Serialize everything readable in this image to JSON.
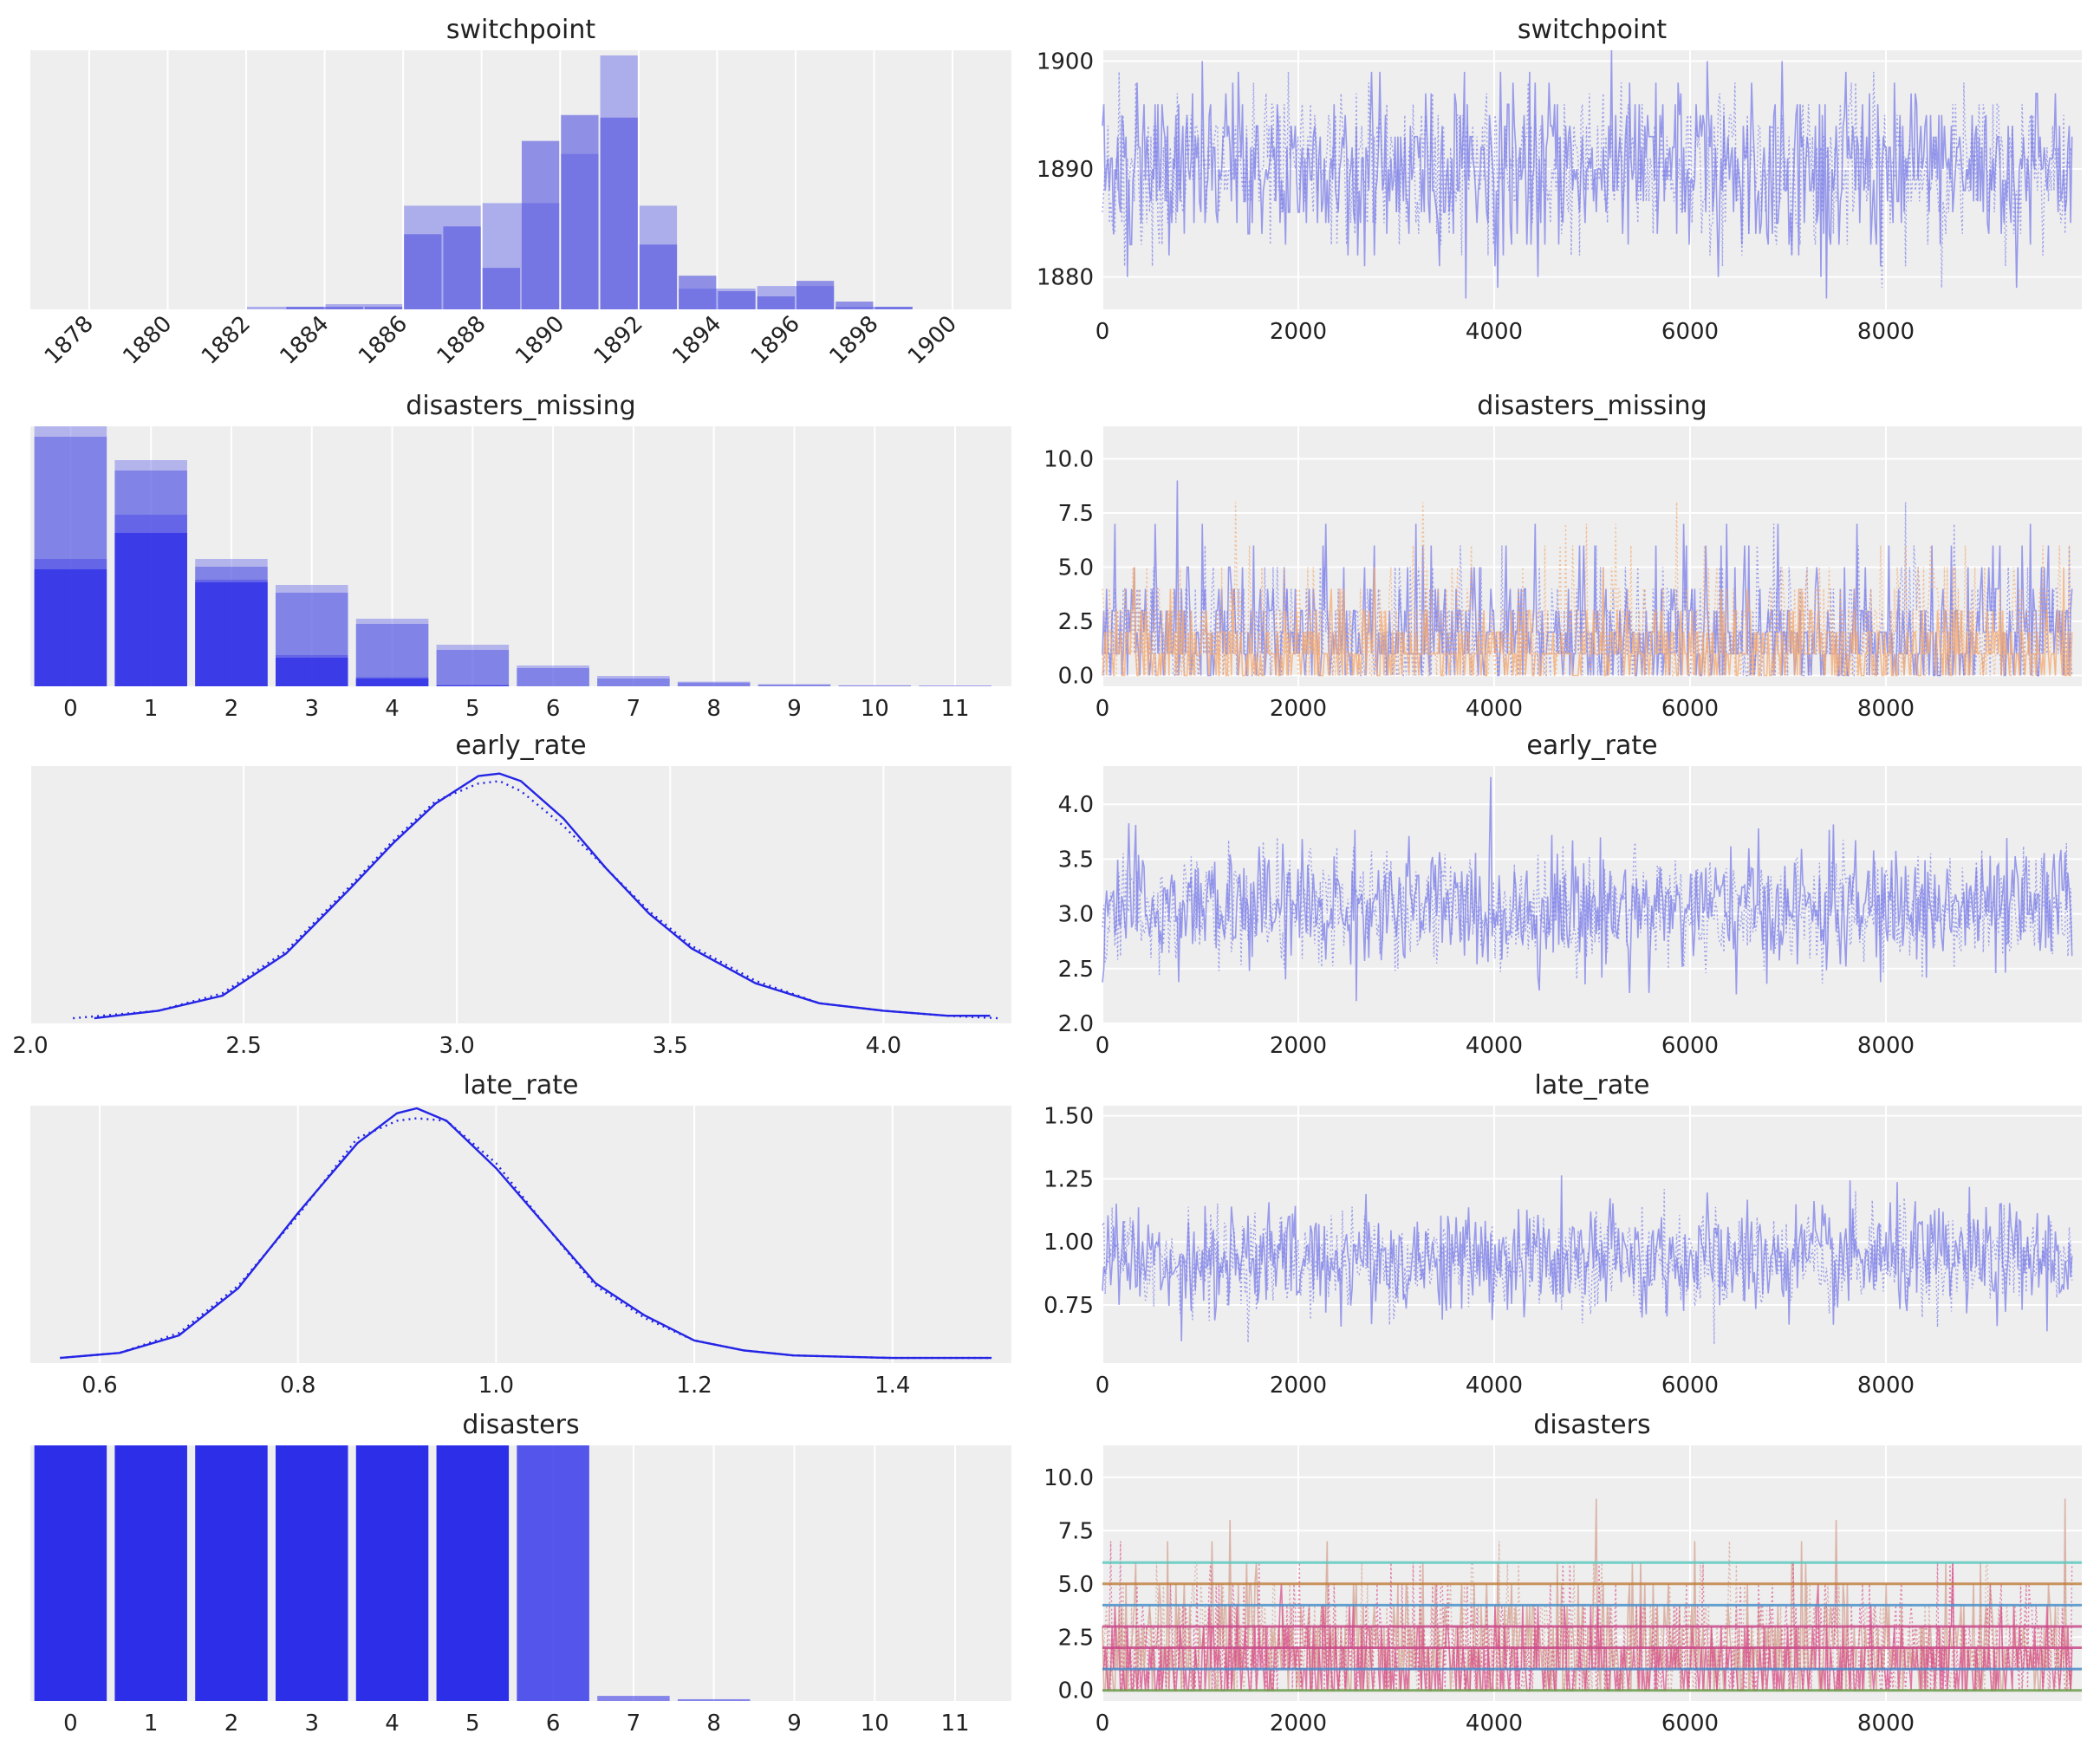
{
  "figure": {
    "rows": [
      "switchpoint",
      "disasters_missing",
      "early_rate",
      "late_rate",
      "disasters"
    ]
  },
  "chart_data": [
    {
      "type": "bar",
      "panel": "left",
      "title": "switchpoint",
      "x_tick_labels": [
        "1878",
        "1880",
        "1882",
        "1884",
        "1886",
        "1888",
        "1890",
        "1892",
        "1894",
        "1896",
        "1898",
        "1900"
      ],
      "x_tick_rotation": -45,
      "xlim": [
        1876.5,
        1901.5
      ],
      "ylim": [
        0,
        1.0
      ],
      "y_ticks_visible": false,
      "series": [
        {
          "style": "light-wide",
          "bins": [
            [
              1882,
              1884,
              0.01
            ],
            [
              1884,
              1886,
              0.02
            ],
            [
              1886,
              1888,
              0.4
            ],
            [
              1888,
              1890,
              0.41
            ],
            [
              1890,
              1891,
              0.6
            ],
            [
              1891,
              1892,
              0.98
            ],
            [
              1892,
              1893,
              0.4
            ],
            [
              1893,
              1895,
              0.08
            ],
            [
              1895,
              1897,
              0.09
            ],
            [
              1897,
              1899,
              0.01
            ]
          ]
        },
        {
          "style": "dark-narrow",
          "bins": [
            [
              1883,
              1885,
              0.01
            ],
            [
              1885,
              1886,
              0.01
            ],
            [
              1886,
              1887,
              0.29
            ],
            [
              1887,
              1888,
              0.32
            ],
            [
              1888,
              1889,
              0.16
            ],
            [
              1889,
              1890,
              0.65
            ],
            [
              1890,
              1891,
              0.75
            ],
            [
              1891,
              1892,
              0.74
            ],
            [
              1892,
              1893,
              0.25
            ],
            [
              1893,
              1894,
              0.13
            ],
            [
              1894,
              1895,
              0.07
            ],
            [
              1895,
              1896,
              0.05
            ],
            [
              1896,
              1897,
              0.11
            ],
            [
              1897,
              1898,
              0.03
            ],
            [
              1898,
              1899,
              0.01
            ]
          ]
        }
      ]
    },
    {
      "type": "line",
      "panel": "right",
      "title": "switchpoint",
      "xlim": [
        0,
        10000
      ],
      "x_ticks": [
        0,
        2000,
        4000,
        6000,
        8000
      ],
      "ylim": [
        1877,
        1901
      ],
      "y_ticks": [
        1880,
        1890,
        1900
      ],
      "trace": {
        "center": 1890,
        "spread": 4,
        "min": 1878,
        "max": 1901,
        "discrete": true,
        "colors": [
          "#7b7de8"
        ]
      }
    },
    {
      "type": "bar",
      "panel": "left",
      "title": "disasters_missing",
      "x_tick_labels": [
        "0",
        "1",
        "2",
        "3",
        "4",
        "5",
        "6",
        "7",
        "8",
        "9",
        "10",
        "11"
      ],
      "xlim": [
        -0.5,
        11.7
      ],
      "ylim": [
        0,
        1.0
      ],
      "y_ticks_visible": false,
      "series": [
        {
          "style": "light",
          "values": [
            1.0,
            0.87,
            0.49,
            0.39,
            0.26,
            0.16,
            0.08,
            0.04,
            0.018,
            0.008,
            0.004,
            0.003
          ]
        },
        {
          "style": "mid",
          "values": [
            0.96,
            0.83,
            0.46,
            0.36,
            0.24,
            0.14,
            0.07,
            0.03,
            0.014,
            0.006,
            0.003,
            0.002
          ]
        },
        {
          "style": "dark",
          "values": [
            0.45,
            0.59,
            0.4,
            0.11,
            0.03,
            0.003,
            0,
            0,
            0,
            0,
            0,
            0
          ]
        },
        {
          "style": "dark-light",
          "values": [
            0.49,
            0.66,
            0.41,
            0.12,
            0.035,
            0.005,
            0,
            0,
            0,
            0,
            0,
            0
          ]
        }
      ]
    },
    {
      "type": "line",
      "panel": "right",
      "title": "disasters_missing",
      "xlim": [
        0,
        10000
      ],
      "x_ticks": [
        0,
        2000,
        4000,
        6000,
        8000
      ],
      "ylim": [
        -0.5,
        11.5
      ],
      "y_ticks": [
        0.0,
        2.5,
        5.0,
        7.5,
        10.0
      ],
      "trace": {
        "center": 2,
        "spread": 2.5,
        "min": 0,
        "max": 11,
        "discrete": true,
        "colors": [
          "#7b7de8",
          "#f4a970"
        ]
      }
    },
    {
      "type": "line",
      "panel": "left",
      "title": "early_rate",
      "xlim": [
        2.0,
        4.3
      ],
      "x_ticks": [
        2.0,
        2.5,
        3.0,
        3.5,
        4.0
      ],
      "ylim": [
        0,
        1.0
      ],
      "y_ticks_visible": false,
      "series": [
        {
          "style": "solid",
          "x": [
            2.15,
            2.3,
            2.45,
            2.6,
            2.75,
            2.85,
            2.95,
            3.05,
            3.1,
            3.15,
            3.25,
            3.35,
            3.45,
            3.55,
            3.7,
            3.85,
            4.0,
            4.15,
            4.25
          ],
          "y": [
            0.0,
            0.03,
            0.09,
            0.26,
            0.52,
            0.7,
            0.86,
            0.97,
            0.98,
            0.95,
            0.8,
            0.6,
            0.42,
            0.28,
            0.14,
            0.06,
            0.03,
            0.01,
            0.01
          ]
        },
        {
          "style": "dotted",
          "x": [
            2.1,
            2.3,
            2.45,
            2.6,
            2.75,
            2.85,
            2.95,
            3.05,
            3.1,
            3.15,
            3.25,
            3.35,
            3.45,
            3.55,
            3.7,
            3.85,
            4.0,
            4.15,
            4.27
          ],
          "y": [
            0.0,
            0.03,
            0.1,
            0.27,
            0.53,
            0.71,
            0.87,
            0.94,
            0.95,
            0.91,
            0.77,
            0.6,
            0.43,
            0.29,
            0.15,
            0.06,
            0.03,
            0.01,
            0.0
          ]
        }
      ]
    },
    {
      "type": "line",
      "panel": "right",
      "title": "early_rate",
      "xlim": [
        0,
        10000
      ],
      "x_ticks": [
        0,
        2000,
        4000,
        6000,
        8000
      ],
      "ylim": [
        2.0,
        4.35
      ],
      "y_ticks": [
        2.0,
        2.5,
        3.0,
        3.5,
        4.0
      ],
      "trace": {
        "center": 3.05,
        "spread": 0.28,
        "min": 2.15,
        "max": 4.25,
        "discrete": false,
        "colors": [
          "#7b7de8"
        ]
      }
    },
    {
      "type": "line",
      "panel": "left",
      "title": "late_rate",
      "xlim": [
        0.53,
        1.52
      ],
      "x_ticks": [
        0.6,
        0.8,
        1.0,
        1.2,
        1.4
      ],
      "ylim": [
        0,
        1.0
      ],
      "y_ticks_visible": false,
      "series": [
        {
          "style": "solid",
          "x": [
            0.56,
            0.62,
            0.68,
            0.74,
            0.8,
            0.86,
            0.9,
            0.92,
            0.95,
            1.0,
            1.05,
            1.1,
            1.15,
            1.2,
            1.25,
            1.3,
            1.4,
            1.5
          ],
          "y": [
            0.0,
            0.02,
            0.09,
            0.28,
            0.58,
            0.86,
            0.98,
            1.0,
            0.95,
            0.76,
            0.53,
            0.3,
            0.17,
            0.07,
            0.03,
            0.01,
            0.0,
            0.0
          ]
        },
        {
          "style": "dotted",
          "x": [
            0.56,
            0.62,
            0.68,
            0.74,
            0.8,
            0.86,
            0.9,
            0.92,
            0.95,
            1.0,
            1.05,
            1.1,
            1.15,
            1.2,
            1.25,
            1.3,
            1.4,
            1.5
          ],
          "y": [
            0.0,
            0.02,
            0.1,
            0.29,
            0.57,
            0.88,
            0.95,
            0.96,
            0.95,
            0.78,
            0.53,
            0.29,
            0.16,
            0.07,
            0.03,
            0.01,
            0.0,
            0.0
          ]
        }
      ]
    },
    {
      "type": "line",
      "panel": "right",
      "title": "late_rate",
      "xlim": [
        0,
        10000
      ],
      "x_ticks": [
        0,
        2000,
        4000,
        6000,
        8000
      ],
      "ylim": [
        0.52,
        1.54
      ],
      "y_ticks": [
        0.75,
        1.0,
        1.25,
        1.5
      ],
      "trace": {
        "center": 0.93,
        "spread": 0.11,
        "min": 0.58,
        "max": 1.5,
        "discrete": false,
        "colors": [
          "#7b7de8"
        ]
      }
    },
    {
      "type": "bar",
      "panel": "left",
      "title": "disasters",
      "x_tick_labels": [
        "0",
        "1",
        "2",
        "3",
        "4",
        "5",
        "6",
        "7",
        "8",
        "9",
        "10",
        "11"
      ],
      "xlim": [
        -0.5,
        11.7
      ],
      "ylim": [
        0,
        1.0
      ],
      "y_ticks_visible": false,
      "series": [
        {
          "style": "full",
          "values": [
            1,
            1,
            1,
            1,
            1,
            1,
            1,
            0.02,
            0.007,
            0,
            0,
            0
          ]
        }
      ]
    },
    {
      "type": "line",
      "panel": "right",
      "title": "disasters",
      "xlim": [
        0,
        10000
      ],
      "x_ticks": [
        0,
        2000,
        4000,
        6000,
        8000
      ],
      "ylim": [
        -0.5,
        11.5
      ],
      "y_ticks": [
        0.0,
        2.5,
        5.0,
        7.5,
        10.0
      ],
      "constant_lines": [
        {
          "value": 6,
          "color": "#5cc8c0"
        },
        {
          "value": 5,
          "color": "#c08040"
        },
        {
          "value": 4,
          "color": "#4a90c8"
        },
        {
          "value": 3,
          "color": "#c84a8a"
        },
        {
          "value": 2,
          "color": "#c84a8a"
        },
        {
          "value": 1,
          "color": "#4a8ac8"
        },
        {
          "value": 0,
          "color": "#6a9a4a"
        }
      ],
      "trace": {
        "center": 2,
        "spread": 2.5,
        "min": 0,
        "max": 11,
        "discrete": true,
        "colors": [
          "#d4a090",
          "#d8508a"
        ]
      }
    }
  ]
}
